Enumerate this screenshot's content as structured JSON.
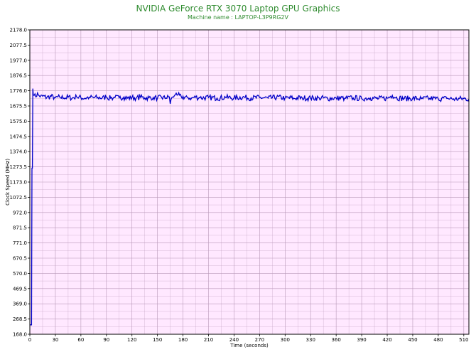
{
  "chart_data": {
    "type": "line",
    "title": "NVIDIA GeForce RTX 3070 Laptop GPU Graphics",
    "subtitle": "Machine name : LAPTOP-L3P9RG2V",
    "xlabel": "Time (seconds)",
    "ylabel": "Clock Speed (MHz)",
    "xlim": [
      0,
      516
    ],
    "ylim": [
      168.0,
      2178.0
    ],
    "grid": true,
    "x_ticks": [
      0,
      30,
      60,
      90,
      120,
      150,
      180,
      210,
      240,
      270,
      300,
      330,
      360,
      390,
      420,
      450,
      480,
      510
    ],
    "y_ticks": [
      "168.0",
      "268.5",
      "369.0",
      "469.5",
      "570.0",
      "670.5",
      "771.0",
      "871.5",
      "972.0",
      "1072.5",
      "1173.0",
      "1273.5",
      "1374.0",
      "1474.5",
      "1575.0",
      "1675.5",
      "1776.0",
      "1876.5",
      "1977.0",
      "2077.5",
      "2178.0"
    ],
    "colors": {
      "line": "#0000c8",
      "plot_bg": "#ffe8ff",
      "grid": "#b898b8",
      "title": "#2e8b2e"
    },
    "series": [
      {
        "values_description_free": true,
        "points": [
          [
            0,
            230
          ],
          [
            2,
            230
          ],
          [
            2.5,
            1265
          ],
          [
            3,
            1265
          ],
          [
            3.5,
            1790
          ],
          [
            4,
            1750
          ],
          [
            5,
            1745
          ],
          [
            7,
            1735
          ],
          [
            9,
            1762
          ],
          [
            10,
            1748
          ],
          [
            12,
            1735
          ],
          [
            15,
            1740
          ],
          [
            20,
            1732
          ],
          [
            25,
            1738
          ],
          [
            30,
            1730
          ],
          [
            35,
            1735
          ],
          [
            40,
            1728
          ],
          [
            45,
            1733
          ],
          [
            50,
            1729
          ],
          [
            55,
            1735
          ],
          [
            60,
            1730
          ],
          [
            65,
            1727
          ],
          [
            70,
            1734
          ],
          [
            75,
            1729
          ],
          [
            80,
            1732
          ],
          [
            85,
            1728
          ],
          [
            90,
            1733
          ],
          [
            95,
            1727
          ],
          [
            100,
            1731
          ],
          [
            105,
            1729
          ],
          [
            110,
            1733
          ],
          [
            115,
            1727
          ],
          [
            120,
            1731
          ],
          [
            125,
            1729
          ],
          [
            130,
            1733
          ],
          [
            135,
            1728
          ],
          [
            140,
            1730
          ],
          [
            145,
            1732
          ],
          [
            150,
            1728
          ],
          [
            155,
            1731
          ],
          [
            160,
            1727
          ],
          [
            164,
            1735
          ],
          [
            165,
            1690
          ],
          [
            166,
            1720
          ],
          [
            168,
            1735
          ],
          [
            170,
            1745
          ],
          [
            172,
            1760
          ],
          [
            174,
            1748
          ],
          [
            178,
            1736
          ],
          [
            185,
            1732
          ],
          [
            190,
            1728
          ],
          [
            195,
            1733
          ],
          [
            200,
            1729
          ],
          [
            210,
            1731
          ],
          [
            220,
            1727
          ],
          [
            230,
            1732
          ],
          [
            240,
            1729
          ],
          [
            250,
            1733
          ],
          [
            260,
            1728
          ],
          [
            270,
            1731
          ],
          [
            280,
            1727
          ],
          [
            290,
            1732
          ],
          [
            300,
            1729
          ],
          [
            310,
            1727
          ],
          [
            320,
            1730
          ],
          [
            330,
            1726
          ],
          [
            340,
            1729
          ],
          [
            350,
            1725
          ],
          [
            360,
            1728
          ],
          [
            370,
            1726
          ],
          [
            380,
            1729
          ],
          [
            390,
            1725
          ],
          [
            400,
            1728
          ],
          [
            410,
            1724
          ],
          [
            420,
            1727
          ],
          [
            426,
            1745
          ],
          [
            430,
            1730
          ],
          [
            440,
            1724
          ],
          [
            450,
            1727
          ],
          [
            460,
            1723
          ],
          [
            470,
            1726
          ],
          [
            480,
            1722
          ],
          [
            490,
            1725
          ],
          [
            500,
            1721
          ],
          [
            510,
            1724
          ],
          [
            516,
            1722
          ]
        ]
      }
    ]
  }
}
